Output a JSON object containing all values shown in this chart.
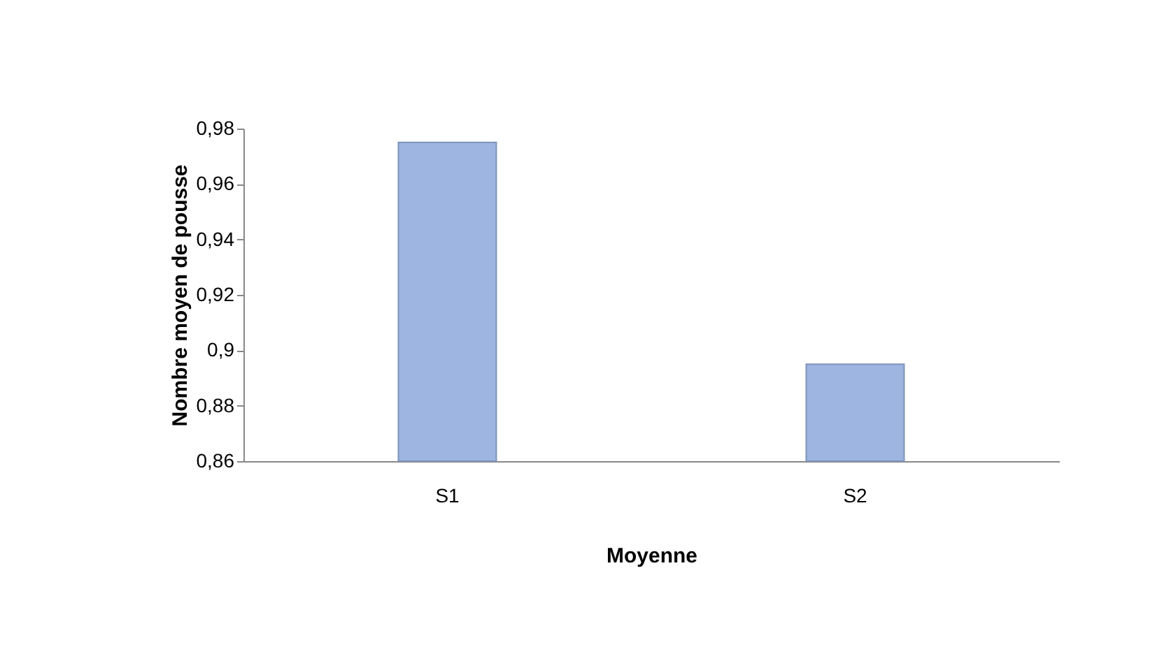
{
  "chart_data": {
    "type": "bar",
    "xlabel": "Moyenne",
    "ylabel": "Nombre moyen de pousse",
    "categories": [
      "S1",
      "S2"
    ],
    "series": [
      {
        "color": "#9db5e0",
        "values": [
          0.975,
          0.895
        ]
      }
    ],
    "ylim": [
      0.86,
      0.98
    ],
    "yticks": [
      {
        "value": 0.86,
        "label": "0,86"
      },
      {
        "value": 0.88,
        "label": "0,88"
      },
      {
        "value": 0.9,
        "label": "0,9"
      },
      {
        "value": 0.92,
        "label": "0,92"
      },
      {
        "value": 0.94,
        "label": "0,94"
      },
      {
        "value": 0.96,
        "label": "0,96"
      },
      {
        "value": 0.98,
        "label": "0,98"
      }
    ],
    "grid": false
  }
}
